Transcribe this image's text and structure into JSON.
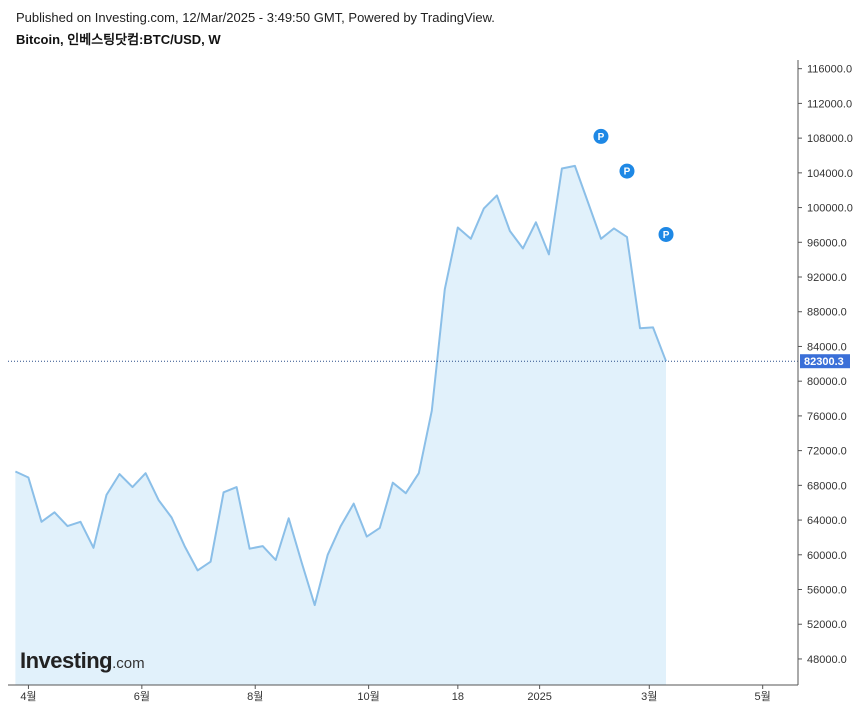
{
  "header": {
    "published": "Published on Investing.com, 12/Mar/2025 - 3:49:50 GMT, Powered by TradingView.",
    "symbol": "Bitcoin, 인베스팅닷컴:BTC/USD, W"
  },
  "logo": {
    "brand": "Investing",
    "suffix": ".com"
  },
  "colors": {
    "line": "#8bbfe8",
    "area": "#e1f1fb",
    "price_badge": "#3a6fd8",
    "marker": "#1e88e5",
    "axis": "#555555"
  },
  "chart_data": {
    "type": "area",
    "title": "",
    "xlabel": "",
    "ylabel": "",
    "ylim": [
      45000,
      117000
    ],
    "y_ticks": [
      "116000.0",
      "112000.0",
      "108000.0",
      "104000.0",
      "100000.0",
      "96000.0",
      "92000.0",
      "88000.0",
      "84000.0",
      "80000.0",
      "76000.0",
      "72000.0",
      "68000.0",
      "64000.0",
      "60000.0",
      "56000.0",
      "52000.0",
      "48000.0"
    ],
    "x_ticks": [
      {
        "label": "4월",
        "date": "2024-04-01"
      },
      {
        "label": "6월",
        "date": "2024-06-01"
      },
      {
        "label": "8월",
        "date": "2024-08-01"
      },
      {
        "label": "10월",
        "date": "2024-10-01"
      },
      {
        "label": "18",
        "date": "2024-11-18"
      },
      {
        "label": "2025",
        "date": "2025-01-01"
      },
      {
        "label": "3월",
        "date": "2025-03-01"
      },
      {
        "label": "5월",
        "date": "2025-05-01"
      }
    ],
    "x_range": [
      "2024-03-21",
      "2025-05-20"
    ],
    "last_price": 82300.3,
    "last_price_label": "82300.3",
    "series": [
      {
        "name": "",
        "x": [
          "2024-03-25",
          "2024-04-01",
          "2024-04-08",
          "2024-04-15",
          "2024-04-22",
          "2024-04-29",
          "2024-05-06",
          "2024-05-13",
          "2024-05-20",
          "2024-05-27",
          "2024-06-03",
          "2024-06-10",
          "2024-06-17",
          "2024-06-24",
          "2024-07-01",
          "2024-07-08",
          "2024-07-15",
          "2024-07-22",
          "2024-07-29",
          "2024-08-05",
          "2024-08-12",
          "2024-08-19",
          "2024-08-26",
          "2024-09-02",
          "2024-09-09",
          "2024-09-16",
          "2024-09-23",
          "2024-09-30",
          "2024-10-07",
          "2024-10-14",
          "2024-10-21",
          "2024-10-28",
          "2024-11-04",
          "2024-11-11",
          "2024-11-18",
          "2024-11-25",
          "2024-12-02",
          "2024-12-09",
          "2024-12-16",
          "2024-12-23",
          "2024-12-30",
          "2025-01-06",
          "2025-01-13",
          "2025-01-20",
          "2025-01-27",
          "2025-02-03",
          "2025-02-10",
          "2025-02-17",
          "2025-02-24",
          "2025-03-03",
          "2025-03-10"
        ],
        "values": [
          69600,
          68900,
          63800,
          64900,
          63300,
          63800,
          60800,
          66900,
          69300,
          67800,
          69400,
          66300,
          64300,
          61000,
          58200,
          59200,
          67200,
          67800,
          60700,
          61000,
          59400,
          64200,
          59100,
          54200,
          60000,
          63300,
          65900,
          62100,
          63100,
          68300,
          67100,
          69400,
          76600,
          90600,
          97700,
          96400,
          99900,
          101400,
          97300,
          95300,
          98300,
          94600,
          104500,
          104800,
          100600,
          96400,
          97600,
          96600,
          86100,
          86200,
          82300
        ]
      }
    ],
    "annotations": [
      {
        "label": "P",
        "date": "2025-02-03",
        "value": 108200
      },
      {
        "label": "P",
        "date": "2025-02-17",
        "value": 104200
      },
      {
        "label": "P",
        "date": "2025-03-10",
        "value": 96900
      }
    ]
  }
}
